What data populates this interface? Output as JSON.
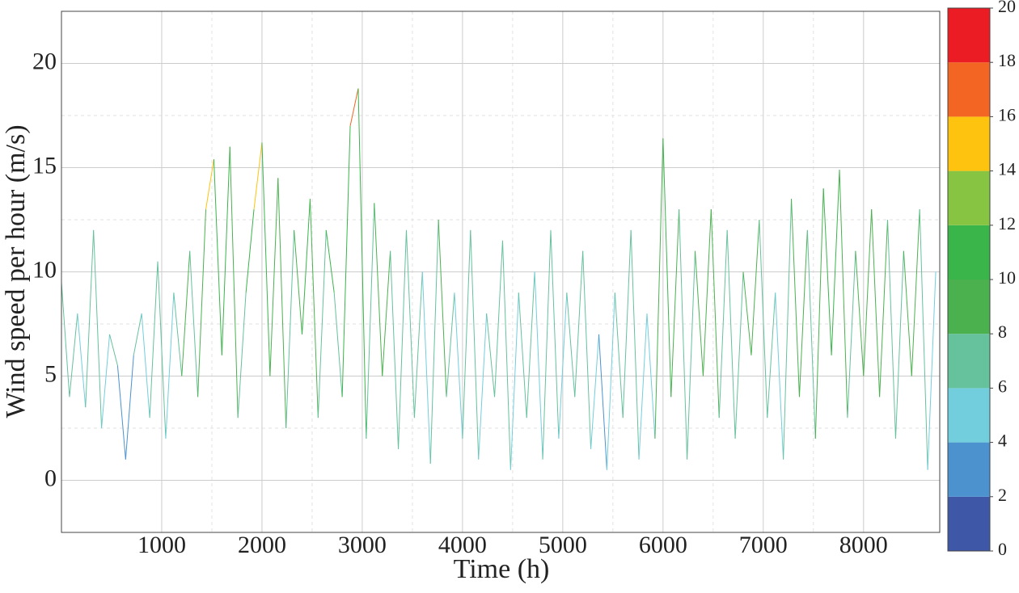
{
  "chart_data": {
    "type": "line",
    "x_label": "Time (h)",
    "y_label": "Wind speed per hour (m/s)",
    "x": [
      0,
      80,
      160,
      240,
      320,
      400,
      480,
      560,
      640,
      720,
      800,
      880,
      960,
      1040,
      1120,
      1200,
      1280,
      1360,
      1440,
      1520,
      1600,
      1680,
      1760,
      1840,
      1920,
      2000,
      2080,
      2160,
      2240,
      2320,
      2400,
      2480,
      2560,
      2640,
      2720,
      2800,
      2880,
      2960,
      3040,
      3120,
      3200,
      3280,
      3360,
      3440,
      3520,
      3600,
      3680,
      3760,
      3840,
      3920,
      4000,
      4080,
      4160,
      4240,
      4320,
      4400,
      4480,
      4560,
      4640,
      4720,
      4800,
      4880,
      4960,
      5040,
      5120,
      5200,
      5280,
      5360,
      5440,
      5520,
      5600,
      5680,
      5760,
      5840,
      5920,
      6000,
      6080,
      6160,
      6240,
      6320,
      6400,
      6480,
      6560,
      6640,
      6720,
      6800,
      6880,
      6960,
      7040,
      7120,
      7200,
      7280,
      7360,
      7440,
      7520,
      7600,
      7680,
      7760,
      7840,
      7920,
      8000,
      8080,
      8160,
      8240,
      8320,
      8400,
      8480,
      8560,
      8640,
      8720
    ],
    "values": [
      9.5,
      4,
      8,
      3.5,
      12,
      2.5,
      7,
      5.5,
      1,
      6,
      8,
      3,
      10.5,
      2,
      9,
      5,
      11,
      4,
      13,
      15.4,
      6,
      16,
      3,
      9,
      13,
      16.2,
      5,
      14.5,
      2.5,
      12,
      7,
      13.5,
      3,
      12,
      9,
      4,
      17,
      18.8,
      2,
      13.3,
      5,
      11,
      1.5,
      12,
      3,
      10,
      0.8,
      12.5,
      4,
      9,
      2,
      12,
      1,
      8,
      4,
      11.5,
      0.5,
      9,
      3,
      10,
      1,
      12,
      2,
      9,
      4,
      11,
      1.5,
      7,
      0.5,
      9,
      3,
      12,
      1,
      8,
      2,
      16.4,
      4,
      13,
      1,
      11,
      5,
      13,
      3,
      12,
      2,
      10,
      6,
      12.5,
      3,
      9,
      1,
      13.5,
      4,
      12,
      2,
      14,
      6,
      14.9,
      3,
      11,
      5,
      13,
      4,
      12.5,
      2,
      11,
      5,
      13,
      0.5,
      10
    ],
    "xlim": [
      0,
      8760
    ],
    "ylim": [
      -2.5,
      22.5
    ],
    "xticks": [
      1000,
      2000,
      3000,
      4000,
      5000,
      6000,
      7000,
      8000
    ],
    "yticks": [
      0,
      5,
      10,
      15,
      20
    ],
    "grid": true,
    "colorbar": {
      "ticks": [
        0,
        2,
        4,
        6,
        8,
        10,
        12,
        14,
        16,
        18,
        20
      ],
      "colors": [
        "#3f57a7",
        "#4b92cf",
        "#72cedd",
        "#66c19d",
        "#4bb14f",
        "#3ab54a",
        "#86c441",
        "#fec30f",
        "#f26522",
        "#ec1c24"
      ]
    }
  }
}
